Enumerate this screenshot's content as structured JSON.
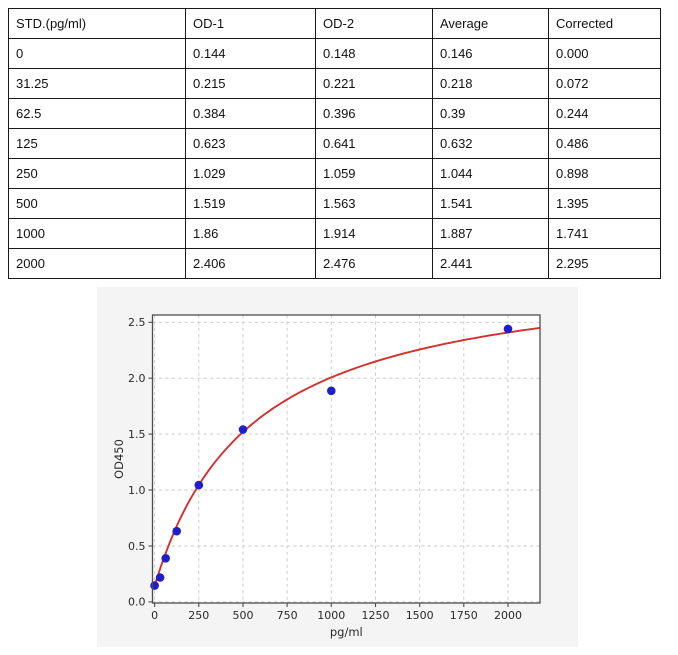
{
  "table": {
    "headers": [
      "STD.(pg/ml)",
      "OD-1",
      "OD-2",
      "Average",
      "Corrected"
    ],
    "rows": [
      [
        "0",
        "0.144",
        "0.148",
        "0.146",
        "0.000"
      ],
      [
        "31.25",
        "0.215",
        "0.221",
        "0.218",
        "0.072"
      ],
      [
        "62.5",
        "0.384",
        "0.396",
        "0.39",
        "0.244"
      ],
      [
        "125",
        "0.623",
        "0.641",
        "0.632",
        "0.486"
      ],
      [
        "250",
        "1.029",
        "1.059",
        "1.044",
        "0.898"
      ],
      [
        "500",
        "1.519",
        "1.563",
        "1.541",
        "1.395"
      ],
      [
        "1000",
        "1.86",
        "1.914",
        "1.887",
        "1.741"
      ],
      [
        "2000",
        "2.406",
        "2.476",
        "2.441",
        "2.295"
      ]
    ]
  },
  "chart_data": {
    "type": "scatter",
    "xlabel": "pg/ml",
    "ylabel": "OD450",
    "x": [
      0,
      31.25,
      62.5,
      125,
      250,
      500,
      1000,
      2000
    ],
    "y": [
      0.146,
      0.218,
      0.39,
      0.632,
      1.044,
      1.541,
      1.887,
      2.441
    ],
    "x_ticks": [
      0,
      250,
      500,
      750,
      1000,
      1250,
      1500,
      1750,
      2000
    ],
    "x_tick_labels": [
      "0",
      "250",
      "500",
      "750",
      "1000",
      "1250",
      "1500",
      "1750",
      "2000"
    ],
    "y_ticks": [
      0,
      0.5,
      1.0,
      1.5,
      2.0,
      2.5
    ],
    "y_tick_labels": [
      "0.0",
      "0.5",
      "1.0",
      "1.5",
      "2.0",
      "2.5"
    ],
    "xlim": [
      -12,
      2181
    ],
    "ylim": [
      -0.01,
      2.565
    ],
    "grid": "dashed",
    "legend": "none",
    "marker_color": "#1e1ecb",
    "curve_color": "#d62f2f",
    "fit_curve": {
      "type": "4PL",
      "a": 0.14,
      "b": 1.0,
      "c": 548,
      "d": 3.03
    },
    "colors": {
      "figure_bg": "#f4f4f5",
      "plot_bg": "#ffffff",
      "grid": "#c8c8c8",
      "spine": "#4d4d4d",
      "tick_label": "#2a2a2a"
    }
  }
}
